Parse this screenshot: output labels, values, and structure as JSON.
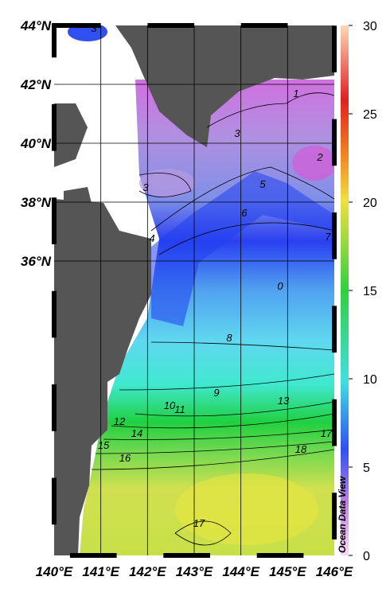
{
  "map": {
    "lat_labels": [
      "44°N",
      "42°N",
      "40°N",
      "38°N",
      "36°N"
    ],
    "lon_labels": [
      "140°E",
      "141°E",
      "142°E",
      "143°E",
      "144°E",
      "145°E",
      "146°E"
    ],
    "colorbar": {
      "range": [
        0,
        30
      ],
      "ticks": [
        0,
        5,
        10,
        15,
        20,
        25,
        30
      ]
    },
    "credit": "Ocean Data View",
    "contour_labels": [
      "3",
      "1",
      "2",
      "3",
      "3",
      "4",
      "5",
      "6",
      "7",
      "0",
      "8",
      "9",
      "10",
      "11",
      "12",
      "13",
      "14",
      "15",
      "16",
      "17",
      "18",
      "17"
    ]
  }
}
